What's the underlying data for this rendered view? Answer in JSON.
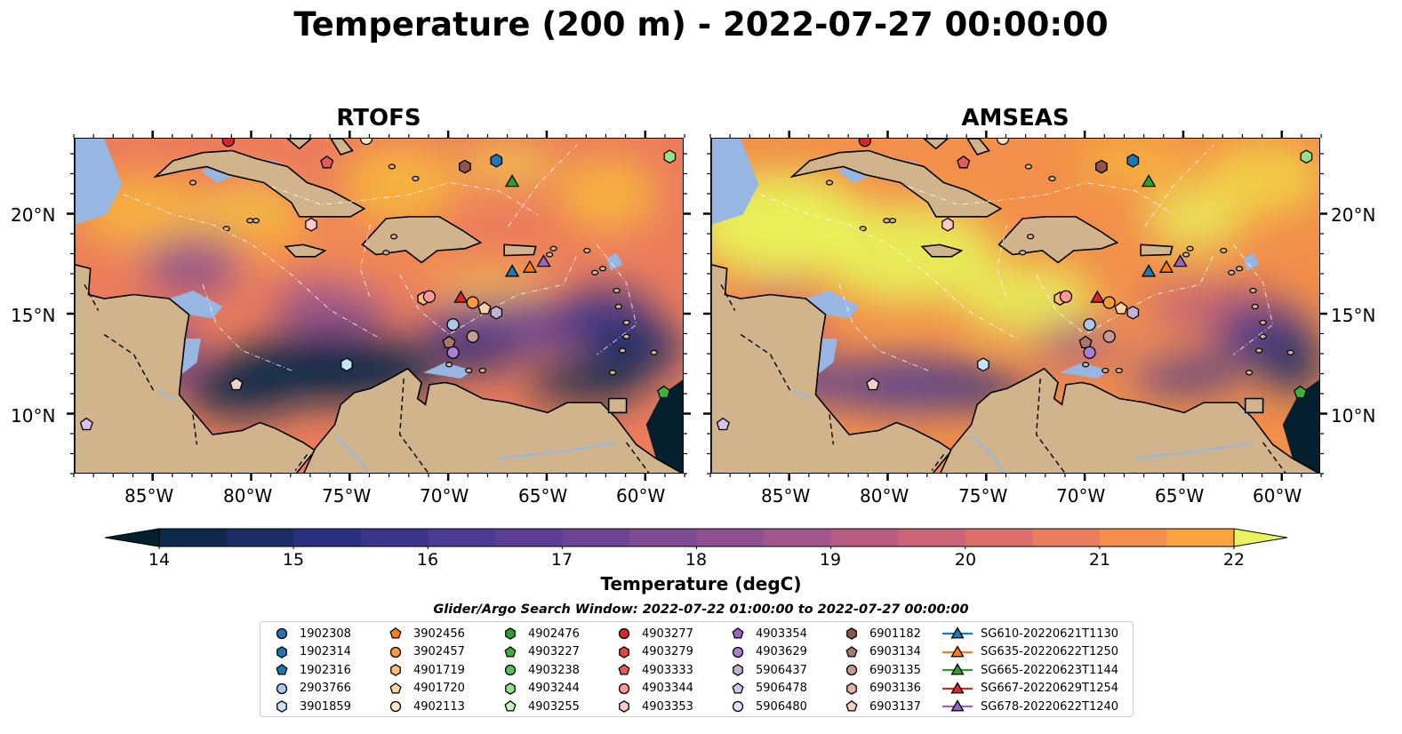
{
  "title": "Temperature (200 m) - 2022-07-27 00:00:00",
  "maps": [
    {
      "id": "rtofs",
      "title": "RTOFS",
      "tint": "warm"
    },
    {
      "id": "amseas",
      "title": "AMSEAS",
      "tint": "hot"
    }
  ],
  "axes": {
    "lon_ticks": [
      "85°W",
      "80°W",
      "75°W",
      "70°W",
      "65°W",
      "60°W"
    ],
    "lat_ticks": [
      "20°N",
      "15°N",
      "10°N"
    ]
  },
  "colorbar": {
    "label": "Temperature (degC)",
    "ticks": [
      "14",
      "15",
      "16",
      "17",
      "18",
      "19",
      "20",
      "21",
      "22"
    ],
    "min": 14,
    "max": 22,
    "step": 0.5,
    "colors": [
      "#04202e",
      "#0d2a4a",
      "#1a2c66",
      "#2a2f80",
      "#3b348c",
      "#4b3a93",
      "#5c3f95",
      "#6d4495",
      "#7e4a93",
      "#905090",
      "#a3568b",
      "#b85c83",
      "#cc6479",
      "#de6e6c",
      "#ec7d5c",
      "#f58f4b",
      "#f9a43f",
      "#f8bd3a",
      "#f2d845",
      "#e8f45a"
    ]
  },
  "search_window": "Glider/Argo Search Window: 2022-07-22 01:00:00 to 2022-07-27 00:00:00",
  "legend": [
    {
      "label": "1902308",
      "color": "#1f77b4",
      "shape": "circle"
    },
    {
      "label": "1902314",
      "color": "#1f77b4",
      "shape": "hexagon"
    },
    {
      "label": "1902316",
      "color": "#1f77b4",
      "shape": "pentagon"
    },
    {
      "label": "2903766",
      "color": "#aec7e8",
      "shape": "circle"
    },
    {
      "label": "3901859",
      "color": "#c6e4f7",
      "shape": "hexagon"
    },
    {
      "label": "3902456",
      "color": "#ff7f0e",
      "shape": "pentagon"
    },
    {
      "label": "3902457",
      "color": "#ff9a3c",
      "shape": "circle"
    },
    {
      "label": "4901719",
      "color": "#ffbb78",
      "shape": "hexagon"
    },
    {
      "label": "4901720",
      "color": "#ffd3a5",
      "shape": "pentagon"
    },
    {
      "label": "4902113",
      "color": "#ffe2c0",
      "shape": "circle"
    },
    {
      "label": "4902476",
      "color": "#2ca02c",
      "shape": "hexagon"
    },
    {
      "label": "4903227",
      "color": "#3cb03c",
      "shape": "pentagon"
    },
    {
      "label": "4903238",
      "color": "#55c455",
      "shape": "circle"
    },
    {
      "label": "4903244",
      "color": "#98df8a",
      "shape": "hexagon"
    },
    {
      "label": "4903255",
      "color": "#c6f2bd",
      "shape": "pentagon"
    },
    {
      "label": "4903277",
      "color": "#d62728",
      "shape": "circle"
    },
    {
      "label": "4903279",
      "color": "#e04444",
      "shape": "hexagon"
    },
    {
      "label": "4903333",
      "color": "#e85a5a",
      "shape": "pentagon"
    },
    {
      "label": "4903344",
      "color": "#ff9896",
      "shape": "circle"
    },
    {
      "label": "4903353",
      "color": "#ffc7c6",
      "shape": "hexagon"
    },
    {
      "label": "4903354",
      "color": "#9467bd",
      "shape": "pentagon"
    },
    {
      "label": "4903629",
      "color": "#a97fd0",
      "shape": "circle"
    },
    {
      "label": "5906437",
      "color": "#c5b0d5",
      "shape": "hexagon"
    },
    {
      "label": "5906478",
      "color": "#d5c3ee",
      "shape": "pentagon"
    },
    {
      "label": "5906480",
      "color": "#e8dcf7",
      "shape": "circle"
    },
    {
      "label": "6901182",
      "color": "#8c564b",
      "shape": "hexagon"
    },
    {
      "label": "6903134",
      "color": "#a8786c",
      "shape": "pentagon"
    },
    {
      "label": "6903135",
      "color": "#c49c94",
      "shape": "circle"
    },
    {
      "label": "6903136",
      "color": "#e0b3aa",
      "shape": "hexagon"
    },
    {
      "label": "6903137",
      "color": "#f5d0c8",
      "shape": "pentagon"
    },
    {
      "label": "SG610-20220621T1130",
      "color": "#1f77b4",
      "shape": "triangle-line"
    },
    {
      "label": "SG635-20220622T1250",
      "color": "#ff7f0e",
      "shape": "triangle-line"
    },
    {
      "label": "SG665-20220623T1144",
      "color": "#2ca02c",
      "shape": "triangle-line"
    },
    {
      "label": "SG667-20220629T1254",
      "color": "#d62728",
      "shape": "triangle-line"
    },
    {
      "label": "SG678-20220622T1240",
      "color": "#9467bd",
      "shape": "triangle-line"
    }
  ],
  "markers": [
    {
      "id": "4903277",
      "lon": -81.2,
      "lat": 23.7
    },
    {
      "id": "4902113",
      "lon": -74.2,
      "lat": 23.8
    },
    {
      "id": "4903333",
      "lon": -76.2,
      "lat": 22.6
    },
    {
      "id": "6901182",
      "lon": -69.2,
      "lat": 22.4
    },
    {
      "id": "1902314",
      "lon": -67.6,
      "lat": 22.7
    },
    {
      "id": "SG665-20220623T1144",
      "lon": -66.8,
      "lat": 21.6
    },
    {
      "id": "4903244",
      "lon": -58.8,
      "lat": 22.9
    },
    {
      "id": "4903353",
      "lon": -77.0,
      "lat": 19.5
    },
    {
      "id": "SG610-20220621T1130",
      "lon": -66.8,
      "lat": 17.1
    },
    {
      "id": "SG635-20220622T1250",
      "lon": -65.9,
      "lat": 17.3
    },
    {
      "id": "SG678-20220622T1240",
      "lon": -65.2,
      "lat": 17.6
    },
    {
      "id": "4901719",
      "lon": -71.3,
      "lat": 15.8
    },
    {
      "id": "4903344",
      "lon": -71.0,
      "lat": 15.9
    },
    {
      "id": "SG667-20220629T1254",
      "lon": -69.4,
      "lat": 15.8
    },
    {
      "id": "3902457",
      "lon": -68.8,
      "lat": 15.6
    },
    {
      "id": "4901720",
      "lon": -68.2,
      "lat": 15.3
    },
    {
      "id": "5906437",
      "lon": -67.6,
      "lat": 15.1
    },
    {
      "id": "2903766",
      "lon": -69.8,
      "lat": 14.5
    },
    {
      "id": "6903134",
      "lon": -70.0,
      "lat": 13.6
    },
    {
      "id": "6903135",
      "lon": -68.8,
      "lat": 13.9
    },
    {
      "id": "4903629",
      "lon": -69.8,
      "lat": 13.1
    },
    {
      "id": "3901859",
      "lon": -75.2,
      "lat": 12.5
    },
    {
      "id": "6903137",
      "lon": -80.8,
      "lat": 11.5
    },
    {
      "id": "4903227",
      "lon": -59.1,
      "lat": 11.1
    },
    {
      "id": "5906478",
      "lon": -88.4,
      "lat": 9.5
    }
  ]
}
